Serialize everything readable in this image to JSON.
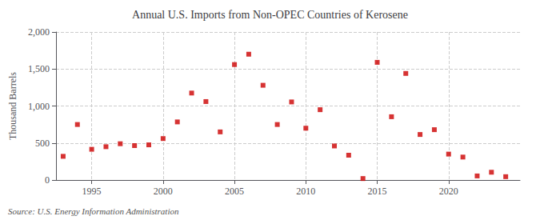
{
  "chart_data": {
    "type": "scatter",
    "title": "Annual U.S. Imports from Non-OPEC Countries of Kerosene",
    "ylabel": "Thousand Barrels",
    "annotation": "Source: U.S. Energy Information Administration",
    "x": [
      1993,
      1994,
      1995,
      1996,
      1997,
      1998,
      1999,
      2000,
      2001,
      2002,
      2003,
      2004,
      2005,
      2006,
      2007,
      2008,
      2009,
      2010,
      2011,
      2012,
      2013,
      2014,
      2015,
      2016,
      2017,
      2018,
      2019,
      2020,
      2021,
      2022,
      2023,
      2024
    ],
    "values": [
      320,
      750,
      415,
      450,
      490,
      465,
      475,
      560,
      785,
      1175,
      1060,
      650,
      1560,
      1700,
      1280,
      750,
      1055,
      700,
      950,
      460,
      335,
      20,
      1590,
      855,
      1440,
      615,
      680,
      350,
      310,
      55,
      105,
      45
    ],
    "color": "#cc0000",
    "marker": "square",
    "xlim": [
      1992.5,
      2025
    ],
    "xticks": [
      1995,
      2000,
      2005,
      2010,
      2015,
      2020
    ],
    "ylim": [
      0,
      2000
    ],
    "yticks": [
      0,
      500,
      {
        "value": 1000,
        "label": "1,000"
      },
      {
        "value": 1500,
        "label": "1,500"
      },
      {
        "value": 2000,
        "label": "2,000"
      }
    ],
    "grid": true
  }
}
